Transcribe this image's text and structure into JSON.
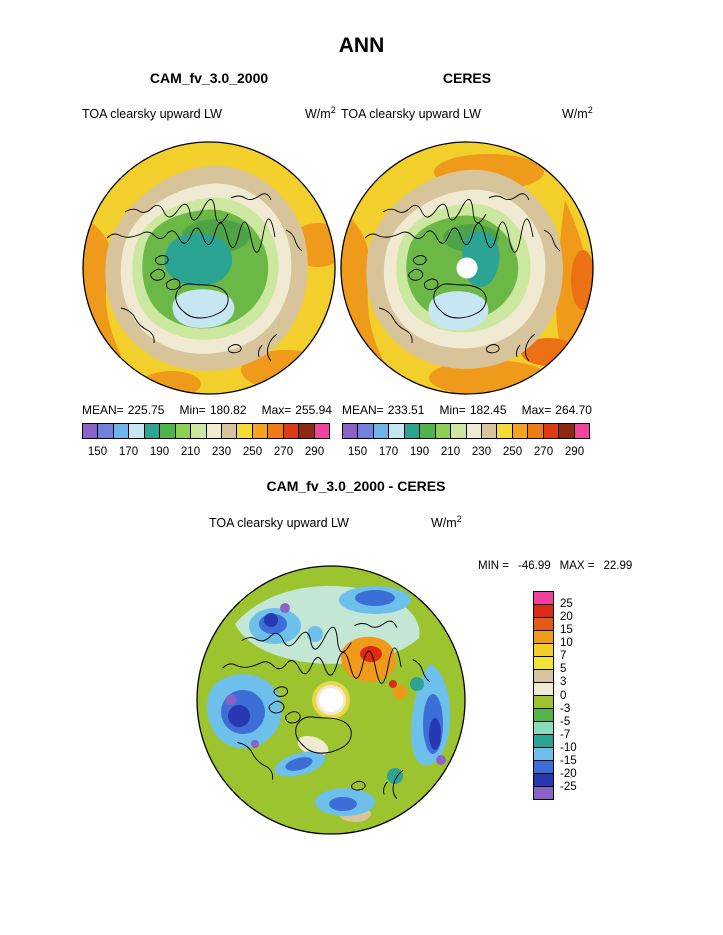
{
  "title": "ANN",
  "panels": {
    "left": {
      "title": "CAM_fv_3.0_2000",
      "subtitle": "TOA clearsky upward LW",
      "units_base": "W/m",
      "units_exp": "2",
      "stats": {
        "mean_label": "MEAN=",
        "mean": "225.75",
        "min_label": "Min=",
        "min": "180.82",
        "max_label": "Max=",
        "max": "255.94"
      }
    },
    "right": {
      "title": "CERES",
      "subtitle": "TOA clearsky upward LW",
      "units_base": "W/m",
      "units_exp": "2",
      "stats": {
        "mean_label": "MEAN=",
        "mean": "233.51",
        "min_label": "Min=",
        "min": "182.45",
        "max_label": "Max=",
        "max": "264.70"
      }
    }
  },
  "colorbar_top": {
    "colors": [
      "#8a62c8",
      "#7282dc",
      "#6eb4e8",
      "#c6e6f2",
      "#2ba493",
      "#50b44c",
      "#8ed054",
      "#cce8a0",
      "#f0ead2",
      "#d8c49a",
      "#f4dc30",
      "#f4a41e",
      "#ef7b14",
      "#de3a14",
      "#8e2a10",
      "#f2439e"
    ],
    "tick_labels": [
      "150",
      "170",
      "190",
      "210",
      "230",
      "250",
      "270",
      "290"
    ]
  },
  "diff": {
    "title": "CAM_fv_3.0_2000 - CERES",
    "subtitle": "TOA clearsky upward LW",
    "units_base": "W/m",
    "units_exp": "2",
    "min_label": "MIN =",
    "min": "-46.99",
    "max_label": "MAX =",
    "max": "22.99",
    "colorbar": {
      "colors": [
        "#f2439e",
        "#de2a14",
        "#e55a14",
        "#f09a1a",
        "#f4ce28",
        "#f2e434",
        "#d8c49a",
        "#f0ead2",
        "#9cc42e",
        "#54b448",
        "#8adbc0",
        "#2ba493",
        "#6cc0ea",
        "#3c6ed8",
        "#2838b0",
        "#8a62c8"
      ],
      "labels": [
        "25",
        "20",
        "15",
        "10",
        "7",
        "5",
        "3",
        "0",
        "-3",
        "-5",
        "-7",
        "-10",
        "-15",
        "-20",
        "-25"
      ]
    }
  },
  "chart_data": {
    "type": "heatmap",
    "subtype": "north polar stereographic contour maps",
    "title": "ANN",
    "variable": "TOA clearsky upward LW",
    "units": "W/m^2",
    "panels": [
      {
        "name": "CAM_fv_3.0_2000",
        "mean": 225.75,
        "min": 180.82,
        "max": 255.94,
        "colorbar_ticks": [
          150,
          170,
          190,
          210,
          230,
          250,
          270,
          290
        ],
        "legend_position": "below panel, horizontal"
      },
      {
        "name": "CERES",
        "mean": 233.51,
        "min": 182.45,
        "max": 264.7,
        "colorbar_ticks": [
          150,
          170,
          190,
          210,
          230,
          250,
          270,
          290
        ],
        "legend_position": "below panel, horizontal"
      },
      {
        "name": "CAM_fv_3.0_2000 - CERES",
        "min": -46.99,
        "max": 22.99,
        "colorbar_levels": [
          25,
          20,
          15,
          10,
          7,
          5,
          3,
          0,
          -3,
          -5,
          -7,
          -10,
          -15,
          -20,
          -25
        ],
        "legend_position": "right of panel, vertical"
      }
    ]
  }
}
